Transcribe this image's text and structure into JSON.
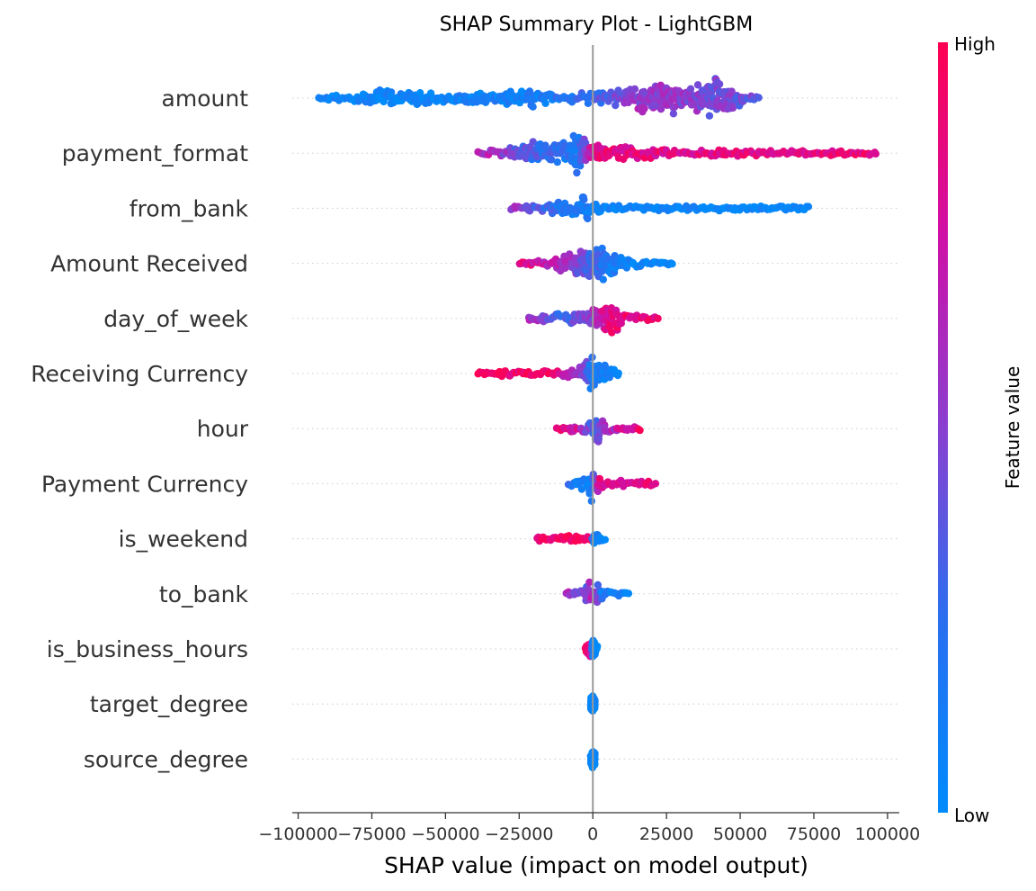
{
  "chart_data": {
    "type": "scatter",
    "subtype": "shap-beeswarm",
    "title": "SHAP Summary Plot - LightGBM",
    "xlabel": "SHAP value (impact on model output)",
    "ylabel": "",
    "xlim": [
      -102000,
      104000
    ],
    "xticks": [
      -100000,
      -75000,
      -50000,
      -25000,
      0,
      25000,
      50000,
      75000,
      100000
    ],
    "xtick_labels": [
      "−100000",
      "−75000",
      "−50000",
      "−25000",
      "0",
      "25000",
      "50000",
      "75000",
      "100000"
    ],
    "grid": false,
    "colorbar": {
      "label": "Feature value",
      "high_label": "High",
      "low_label": "Low",
      "low_color": "#008bfb",
      "high_color": "#ff0052"
    },
    "features": [
      {
        "name": "amount",
        "min": -93000,
        "max": 56000,
        "mass": [
          [
            -93000,
            0.05
          ],
          [
            -80000,
            0.25
          ],
          [
            -70000,
            0.55
          ],
          [
            -60000,
            0.35
          ],
          [
            -45000,
            0.3
          ],
          [
            -30000,
            0.35
          ],
          [
            -22000,
            0.45
          ],
          [
            -10000,
            0.25
          ],
          [
            0,
            0.3
          ],
          [
            10000,
            0.5
          ],
          [
            20000,
            0.85
          ],
          [
            30000,
            0.7
          ],
          [
            35000,
            0.6
          ],
          [
            42000,
            1.0
          ],
          [
            48000,
            0.55
          ],
          [
            56000,
            0.1
          ]
        ],
        "color_stops": [
          [
            -93000,
            0.05
          ],
          [
            -20000,
            0.1
          ],
          [
            0,
            0.3
          ],
          [
            15000,
            0.55
          ],
          [
            30000,
            0.5
          ],
          [
            56000,
            0.4
          ]
        ]
      },
      {
        "name": "payment_format",
        "min": -39000,
        "max": 96000,
        "mass": [
          [
            -39000,
            0.1
          ],
          [
            -30000,
            0.25
          ],
          [
            -20000,
            0.55
          ],
          [
            -15000,
            0.4
          ],
          [
            -8000,
            0.7
          ],
          [
            -5000,
            1.0
          ],
          [
            -1000,
            0.5
          ],
          [
            2000,
            0.35
          ],
          [
            15000,
            0.3
          ],
          [
            30000,
            0.2
          ],
          [
            60000,
            0.15
          ],
          [
            90000,
            0.12
          ],
          [
            96000,
            0.05
          ]
        ],
        "color_stops": [
          [
            -39000,
            0.7
          ],
          [
            -20000,
            0.3
          ],
          [
            -5000,
            0.15
          ],
          [
            0,
            0.85
          ],
          [
            20000,
            0.85
          ],
          [
            60000,
            0.85
          ],
          [
            96000,
            0.9
          ]
        ]
      },
      {
        "name": "from_bank",
        "min": -28000,
        "max": 73000,
        "mass": [
          [
            -28000,
            0.05
          ],
          [
            -18000,
            0.25
          ],
          [
            -12000,
            0.35
          ],
          [
            -6000,
            0.3
          ],
          [
            -3000,
            0.75
          ],
          [
            0,
            0.35
          ],
          [
            10000,
            0.15
          ],
          [
            40000,
            0.12
          ],
          [
            70000,
            0.1
          ],
          [
            73000,
            0.05
          ]
        ],
        "color_stops": [
          [
            -28000,
            0.6
          ],
          [
            -12000,
            0.2
          ],
          [
            -3000,
            0.15
          ],
          [
            0,
            0.05
          ],
          [
            73000,
            0.02
          ]
        ]
      },
      {
        "name": "Amount Received",
        "min": -25000,
        "max": 27000,
        "mass": [
          [
            -25000,
            0.05
          ],
          [
            -15000,
            0.25
          ],
          [
            -8000,
            0.5
          ],
          [
            -2000,
            0.7
          ],
          [
            3000,
            1.0
          ],
          [
            8000,
            0.45
          ],
          [
            15000,
            0.2
          ],
          [
            27000,
            0.05
          ]
        ],
        "color_stops": [
          [
            -25000,
            0.9
          ],
          [
            -10000,
            0.6
          ],
          [
            0,
            0.3
          ],
          [
            10000,
            0.05
          ],
          [
            27000,
            0.02
          ]
        ]
      },
      {
        "name": "day_of_week",
        "min": -22000,
        "max": 22000,
        "mass": [
          [
            -22000,
            0.05
          ],
          [
            -10000,
            0.3
          ],
          [
            -3000,
            0.35
          ],
          [
            0,
            0.5
          ],
          [
            3000,
            0.75
          ],
          [
            6000,
            1.0
          ],
          [
            10000,
            0.3
          ],
          [
            22000,
            0.05
          ]
        ],
        "color_stops": [
          [
            -22000,
            0.65
          ],
          [
            -10000,
            0.25
          ],
          [
            0,
            0.55
          ],
          [
            5000,
            0.85
          ],
          [
            22000,
            0.9
          ]
        ]
      },
      {
        "name": "Receiving Currency",
        "min": -39000,
        "max": 9000,
        "mass": [
          [
            -39000,
            0.05
          ],
          [
            -30000,
            0.15
          ],
          [
            -15000,
            0.2
          ],
          [
            -5000,
            0.35
          ],
          [
            -2000,
            0.75
          ],
          [
            0,
            0.9
          ],
          [
            3000,
            0.5
          ],
          [
            9000,
            0.1
          ]
        ],
        "color_stops": [
          [
            -39000,
            0.95
          ],
          [
            -15000,
            0.9
          ],
          [
            -4000,
            0.5
          ],
          [
            0,
            0.15
          ],
          [
            9000,
            0.1
          ]
        ]
      },
      {
        "name": "hour",
        "min": -12000,
        "max": 16000,
        "mass": [
          [
            -12000,
            0.1
          ],
          [
            -5000,
            0.2
          ],
          [
            -1000,
            0.4
          ],
          [
            1500,
            0.9
          ],
          [
            4000,
            0.3
          ],
          [
            7000,
            0.15
          ],
          [
            16000,
            0.1
          ]
        ],
        "color_stops": [
          [
            -12000,
            0.9
          ],
          [
            -5000,
            0.75
          ],
          [
            0,
            0.3
          ],
          [
            4000,
            0.6
          ],
          [
            16000,
            0.9
          ]
        ]
      },
      {
        "name": "Payment Currency",
        "min": -8000,
        "max": 21000,
        "mass": [
          [
            -8000,
            0.1
          ],
          [
            -2000,
            0.45
          ],
          [
            -500,
            0.9
          ],
          [
            1000,
            0.45
          ],
          [
            5000,
            0.2
          ],
          [
            20000,
            0.15
          ],
          [
            21000,
            0.05
          ]
        ],
        "color_stops": [
          [
            -8000,
            0.2
          ],
          [
            -500,
            0.1
          ],
          [
            2000,
            0.8
          ],
          [
            21000,
            0.9
          ]
        ]
      },
      {
        "name": "is_weekend",
        "min": -19000,
        "max": 4000,
        "mass": [
          [
            -19000,
            0.12
          ],
          [
            -10000,
            0.15
          ],
          [
            -3000,
            0.15
          ],
          [
            -500,
            0.15
          ],
          [
            0,
            0.45
          ],
          [
            2000,
            0.3
          ],
          [
            4000,
            0.1
          ]
        ],
        "color_stops": [
          [
            -19000,
            0.95
          ],
          [
            -3000,
            0.95
          ],
          [
            -800,
            0.9
          ],
          [
            0,
            0.03
          ],
          [
            4000,
            0.02
          ]
        ]
      },
      {
        "name": "to_bank",
        "min": -9000,
        "max": 12000,
        "mass": [
          [
            -9000,
            0.1
          ],
          [
            -3000,
            0.3
          ],
          [
            0,
            0.75
          ],
          [
            2000,
            0.5
          ],
          [
            5000,
            0.2
          ],
          [
            12000,
            0.1
          ]
        ],
        "color_stops": [
          [
            -9000,
            0.6
          ],
          [
            -2000,
            0.4
          ],
          [
            0,
            0.7
          ],
          [
            3000,
            0.15
          ],
          [
            12000,
            0.05
          ]
        ]
      },
      {
        "name": "is_business_hours",
        "min": -2500,
        "max": 1500,
        "mass": [
          [
            -2500,
            0.2
          ],
          [
            -1000,
            0.35
          ],
          [
            0,
            0.45
          ],
          [
            1500,
            0.2
          ]
        ],
        "color_stops": [
          [
            -2500,
            0.95
          ],
          [
            -800,
            0.9
          ],
          [
            0,
            0.1
          ],
          [
            1500,
            0.05
          ]
        ]
      },
      {
        "name": "target_degree",
        "min": -700,
        "max": 700,
        "mass": [
          [
            -700,
            0.3
          ],
          [
            0,
            0.45
          ],
          [
            700,
            0.3
          ]
        ],
        "color_stops": [
          [
            -700,
            0.02
          ],
          [
            700,
            0.02
          ]
        ]
      },
      {
        "name": "source_degree",
        "min": -700,
        "max": 700,
        "mass": [
          [
            -700,
            0.3
          ],
          [
            0,
            0.45
          ],
          [
            700,
            0.3
          ]
        ],
        "color_stops": [
          [
            -700,
            0.02
          ],
          [
            700,
            0.02
          ]
        ]
      }
    ]
  }
}
